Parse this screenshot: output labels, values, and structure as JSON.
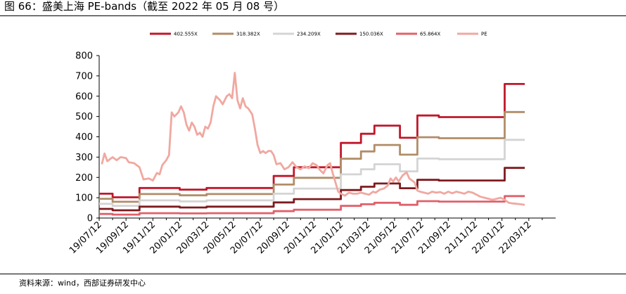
{
  "header": {
    "title": "图 66：盛美上海 PE-bands（截至 2022 年 05 月 08 号）"
  },
  "footer": {
    "source": "资料来源：wind，西部证券研发中心"
  },
  "chart_data": {
    "type": "line",
    "title": "",
    "xlabel": "",
    "ylabel": "",
    "ylim": [
      0,
      800
    ],
    "yticks": [
      0,
      100,
      200,
      300,
      400,
      500,
      600,
      700,
      800
    ],
    "xlim": [
      0,
      34
    ],
    "xtick_labels": [
      "19/07/12",
      "19/09/12",
      "19/11/12",
      "20/01/12",
      "20/03/12",
      "20/05/12",
      "20/07/12",
      "20/09/12",
      "20/11/12",
      "21/01/12",
      "21/03/12",
      "21/05/12",
      "21/07/12",
      "21/09/12",
      "21/11/12",
      "22/01/12",
      "22/03/12"
    ],
    "x_unit": "months since 2019/07/12",
    "grid": false,
    "legend_position": "top",
    "series": [
      {
        "name": "402.555X",
        "color": "#C0172A",
        "width": 2.8,
        "points": [
          [
            0,
            120
          ],
          [
            1,
            120
          ],
          [
            1,
            102
          ],
          [
            3,
            102
          ],
          [
            3,
            148
          ],
          [
            6,
            148
          ],
          [
            6,
            140
          ],
          [
            8,
            140
          ],
          [
            8,
            148
          ],
          [
            13,
            148
          ],
          [
            13,
            207
          ],
          [
            14.5,
            207
          ],
          [
            14.5,
            250
          ],
          [
            18,
            250
          ],
          [
            18,
            370
          ],
          [
            19.5,
            370
          ],
          [
            19.5,
            415
          ],
          [
            20.5,
            415
          ],
          [
            20.5,
            455
          ],
          [
            22.4,
            455
          ],
          [
            22.4,
            395
          ],
          [
            23.7,
            395
          ],
          [
            23.7,
            505
          ],
          [
            25.3,
            505
          ],
          [
            25.3,
            497
          ],
          [
            30.2,
            497
          ],
          [
            30.2,
            660
          ],
          [
            31.7,
            660
          ]
        ]
      },
      {
        "name": "318.382X",
        "color": "#B08D68",
        "width": 2.8,
        "points": [
          [
            0,
            95
          ],
          [
            1,
            95
          ],
          [
            1,
            80
          ],
          [
            3,
            80
          ],
          [
            3,
            118
          ],
          [
            6,
            118
          ],
          [
            6,
            112
          ],
          [
            8,
            112
          ],
          [
            8,
            118
          ],
          [
            13,
            118
          ],
          [
            13,
            165
          ],
          [
            14.5,
            165
          ],
          [
            14.5,
            198
          ],
          [
            18,
            198
          ],
          [
            18,
            292
          ],
          [
            19.5,
            292
          ],
          [
            19.5,
            328
          ],
          [
            20.5,
            328
          ],
          [
            20.5,
            360
          ],
          [
            22.4,
            360
          ],
          [
            22.4,
            312
          ],
          [
            23.7,
            312
          ],
          [
            23.7,
            398
          ],
          [
            25.3,
            398
          ],
          [
            25.3,
            393
          ],
          [
            30.2,
            393
          ],
          [
            30.2,
            522
          ],
          [
            31.7,
            522
          ]
        ]
      },
      {
        "name": "234.209X",
        "color": "#D4D4D4",
        "width": 2.8,
        "points": [
          [
            0,
            70
          ],
          [
            1,
            70
          ],
          [
            1,
            60
          ],
          [
            3,
            60
          ],
          [
            3,
            87
          ],
          [
            6,
            87
          ],
          [
            6,
            82
          ],
          [
            8,
            82
          ],
          [
            8,
            87
          ],
          [
            13,
            87
          ],
          [
            13,
            120
          ],
          [
            14.5,
            120
          ],
          [
            14.5,
            145
          ],
          [
            18,
            145
          ],
          [
            18,
            215
          ],
          [
            19.5,
            215
          ],
          [
            19.5,
            240
          ],
          [
            20.5,
            240
          ],
          [
            20.5,
            265
          ],
          [
            22.4,
            265
          ],
          [
            22.4,
            230
          ],
          [
            23.7,
            230
          ],
          [
            23.7,
            293
          ],
          [
            25.3,
            293
          ],
          [
            25.3,
            290
          ],
          [
            30.2,
            290
          ],
          [
            30.2,
            385
          ],
          [
            31.7,
            385
          ]
        ]
      },
      {
        "name": "150.036X",
        "color": "#7D1B1F",
        "width": 2.8,
        "points": [
          [
            0,
            45
          ],
          [
            1,
            45
          ],
          [
            1,
            38
          ],
          [
            3,
            38
          ],
          [
            3,
            56
          ],
          [
            6,
            56
          ],
          [
            6,
            52
          ],
          [
            8,
            52
          ],
          [
            8,
            56
          ],
          [
            13,
            56
          ],
          [
            13,
            77
          ],
          [
            14.5,
            77
          ],
          [
            14.5,
            93
          ],
          [
            18,
            93
          ],
          [
            18,
            138
          ],
          [
            19.5,
            138
          ],
          [
            19.5,
            154
          ],
          [
            20.5,
            154
          ],
          [
            20.5,
            170
          ],
          [
            22.4,
            170
          ],
          [
            22.4,
            147
          ],
          [
            23.7,
            147
          ],
          [
            23.7,
            188
          ],
          [
            25.3,
            188
          ],
          [
            25.3,
            185
          ],
          [
            30.2,
            185
          ],
          [
            30.2,
            247
          ],
          [
            31.7,
            247
          ]
        ]
      },
      {
        "name": "65.864X",
        "color": "#E0606A",
        "width": 2.8,
        "points": [
          [
            0,
            20
          ],
          [
            1,
            20
          ],
          [
            1,
            17
          ],
          [
            3,
            17
          ],
          [
            3,
            24
          ],
          [
            6,
            24
          ],
          [
            6,
            23
          ],
          [
            8,
            23
          ],
          [
            8,
            24
          ],
          [
            13,
            24
          ],
          [
            13,
            34
          ],
          [
            14.5,
            34
          ],
          [
            14.5,
            41
          ],
          [
            18,
            41
          ],
          [
            18,
            60
          ],
          [
            19.5,
            60
          ],
          [
            19.5,
            68
          ],
          [
            20.5,
            68
          ],
          [
            20.5,
            75
          ],
          [
            22.4,
            75
          ],
          [
            22.4,
            65
          ],
          [
            23.7,
            65
          ],
          [
            23.7,
            83
          ],
          [
            25.3,
            83
          ],
          [
            25.3,
            81
          ],
          [
            30.2,
            81
          ],
          [
            30.2,
            108
          ],
          [
            31.7,
            108
          ]
        ]
      },
      {
        "name": "PE",
        "color": "#F0A8A0",
        "width": 2.8,
        "points": [
          [
            0.2,
            265
          ],
          [
            0.4,
            318
          ],
          [
            0.6,
            280
          ],
          [
            1,
            300
          ],
          [
            1.3,
            285
          ],
          [
            1.6,
            300
          ],
          [
            2,
            295
          ],
          [
            2.2,
            275
          ],
          [
            2.6,
            270
          ],
          [
            3,
            250
          ],
          [
            3.3,
            190
          ],
          [
            3.7,
            195
          ],
          [
            4,
            185
          ],
          [
            4.3,
            222
          ],
          [
            4.5,
            215
          ],
          [
            4.7,
            260
          ],
          [
            5,
            285
          ],
          [
            5.2,
            310
          ],
          [
            5.4,
            520
          ],
          [
            5.6,
            500
          ],
          [
            5.9,
            520
          ],
          [
            6.1,
            550
          ],
          [
            6.3,
            520
          ],
          [
            6.5,
            460
          ],
          [
            6.7,
            430
          ],
          [
            6.9,
            470
          ],
          [
            7.1,
            450
          ],
          [
            7.3,
            410
          ],
          [
            7.5,
            420
          ],
          [
            7.7,
            400
          ],
          [
            7.9,
            450
          ],
          [
            8.1,
            440
          ],
          [
            8.3,
            470
          ],
          [
            8.5,
            550
          ],
          [
            8.7,
            600
          ],
          [
            9,
            580
          ],
          [
            9.2,
            560
          ],
          [
            9.5,
            600
          ],
          [
            9.7,
            610
          ],
          [
            9.9,
            590
          ],
          [
            10.1,
            715
          ],
          [
            10.3,
            580
          ],
          [
            10.5,
            540
          ],
          [
            10.7,
            590
          ],
          [
            10.9,
            550
          ],
          [
            11.1,
            540
          ],
          [
            11.4,
            510
          ],
          [
            11.6,
            440
          ],
          [
            11.8,
            360
          ],
          [
            12,
            320
          ],
          [
            12.2,
            330
          ],
          [
            12.4,
            320
          ],
          [
            12.6,
            330
          ],
          [
            12.8,
            330
          ],
          [
            13,
            310
          ],
          [
            13.2,
            265
          ],
          [
            13.5,
            270
          ],
          [
            13.8,
            240
          ],
          [
            14.1,
            250
          ],
          [
            14.4,
            275
          ],
          [
            14.7,
            250
          ],
          [
            15,
            240
          ],
          [
            15.3,
            255
          ],
          [
            15.6,
            245
          ],
          [
            15.9,
            270
          ],
          [
            16.2,
            260
          ],
          [
            16.4,
            240
          ],
          [
            16.7,
            220
          ],
          [
            17,
            260
          ],
          [
            17.2,
            270
          ],
          [
            17.4,
            220
          ],
          [
            17.6,
            175
          ],
          [
            17.8,
            130
          ],
          [
            18,
            120
          ],
          [
            18.3,
            110
          ],
          [
            18.6,
            125
          ],
          [
            18.9,
            120
          ],
          [
            19.2,
            120
          ],
          [
            19.5,
            125
          ],
          [
            19.8,
            120
          ],
          [
            20.1,
            115
          ],
          [
            20.4,
            130
          ],
          [
            20.6,
            125
          ],
          [
            20.9,
            140
          ],
          [
            21.2,
            145
          ],
          [
            21.5,
            160
          ],
          [
            21.7,
            195
          ],
          [
            21.9,
            180
          ],
          [
            22.1,
            200
          ],
          [
            22.3,
            180
          ],
          [
            22.6,
            210
          ],
          [
            22.9,
            225
          ],
          [
            23.1,
            195
          ],
          [
            23.3,
            185
          ],
          [
            23.5,
            175
          ],
          [
            23.7,
            135
          ],
          [
            23.9,
            130
          ],
          [
            24.2,
            125
          ],
          [
            24.5,
            120
          ],
          [
            24.8,
            130
          ],
          [
            25.1,
            125
          ],
          [
            25.4,
            128
          ],
          [
            25.7,
            120
          ],
          [
            26,
            130
          ],
          [
            26.3,
            122
          ],
          [
            26.6,
            130
          ],
          [
            26.9,
            125
          ],
          [
            27.2,
            120
          ],
          [
            27.5,
            130
          ],
          [
            27.8,
            125
          ],
          [
            28.1,
            115
          ],
          [
            28.4,
            105
          ],
          [
            28.7,
            100
          ],
          [
            29,
            95
          ],
          [
            29.3,
            90
          ],
          [
            29.6,
            95
          ],
          [
            29.9,
            100
          ],
          [
            30.2,
            90
          ],
          [
            30.5,
            75
          ],
          [
            30.8,
            72
          ],
          [
            31.1,
            70
          ],
          [
            31.4,
            68
          ],
          [
            31.7,
            65
          ]
        ]
      }
    ]
  }
}
